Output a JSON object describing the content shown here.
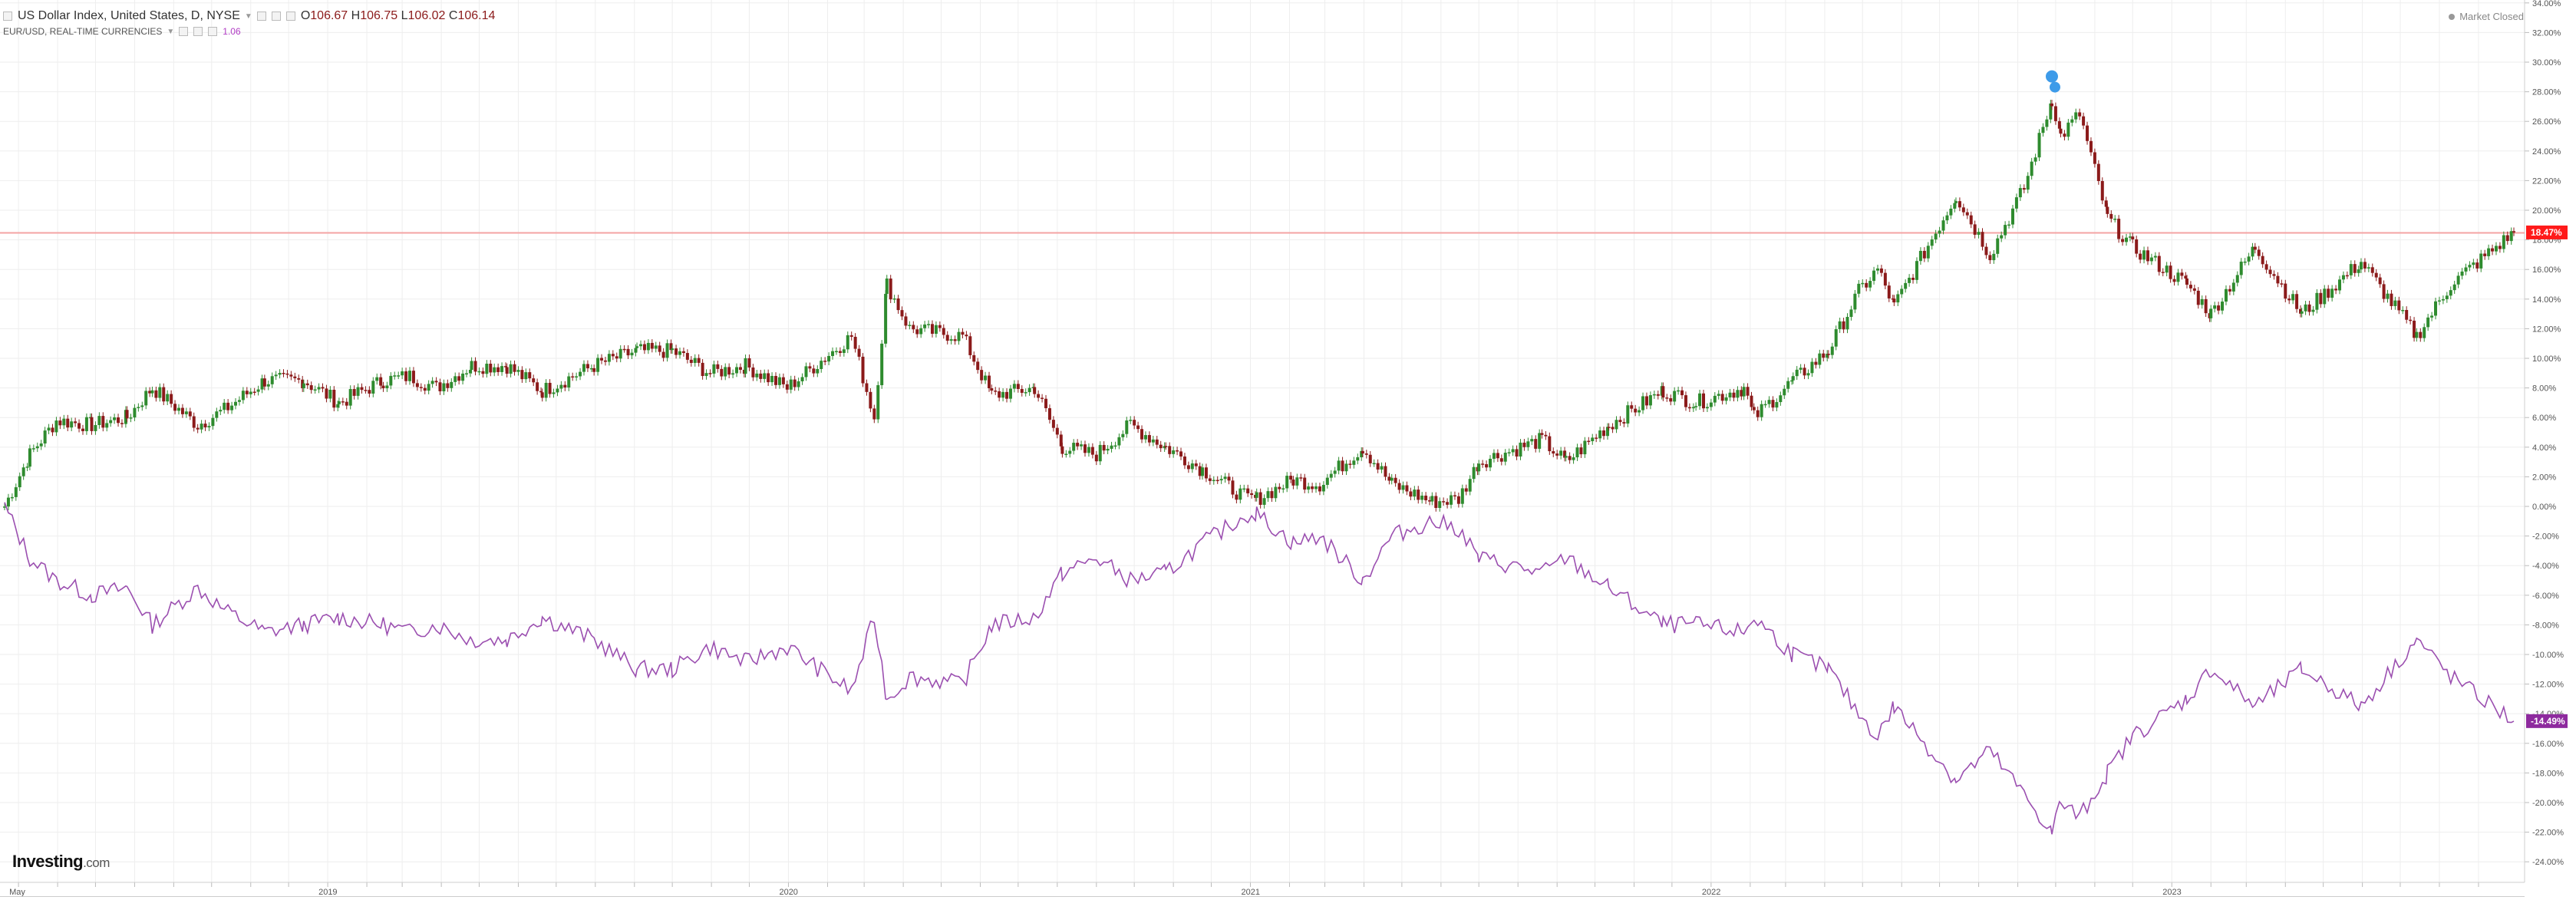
{
  "legend": {
    "main_symbol": "US Dollar Index, United States, D, NYSE",
    "open_label": "O",
    "open": "106.67",
    "high_label": "H",
    "high": "106.75",
    "low_label": "L",
    "low": "106.02",
    "close_label": "C",
    "close": "106.14",
    "compare_symbol": "EUR/USD, REAL-TIME CURRENCIES",
    "compare_value": "1.06",
    "market_status": "Market Closed"
  },
  "branding": {
    "logo_main": "Investing",
    "logo_suffix": ".com"
  },
  "colors": {
    "up": "#2e8b2e",
    "down": "#8b1a1a",
    "compare_line": "#9b4fb0",
    "price_line": "#f4a3a3",
    "badge_main": "#ff1a1a",
    "badge_compare": "#8e2a9e",
    "grid": "#eeeeee",
    "event_marker": "#3d9be9"
  },
  "chart_data": {
    "type": "line",
    "title": "",
    "xlabel": "",
    "ylabel": "",
    "x_range": [
      "2018-04-20",
      "2023-09-29"
    ],
    "ylim": [
      -25,
      34
    ],
    "y_unit": "%",
    "y_ticks": [
      34,
      32,
      30,
      28,
      26,
      24,
      22,
      20,
      18,
      16,
      14,
      12,
      10,
      8,
      6,
      4,
      2,
      0,
      -2,
      -4,
      -6,
      -8,
      -10,
      -12,
      -14,
      -16,
      -18,
      -20,
      -22,
      -24
    ],
    "x_tick_labels": [
      {
        "date": "2018-05-01",
        "label": "May"
      },
      {
        "date": "2019-01-01",
        "label": "2019"
      },
      {
        "date": "2020-01-01",
        "label": "2020"
      },
      {
        "date": "2021-01-01",
        "label": "2021"
      },
      {
        "date": "2022-01-01",
        "label": "2022"
      },
      {
        "date": "2023-01-01",
        "label": "2023"
      }
    ],
    "grid": true,
    "series": [
      {
        "name": "US Dollar Index",
        "style": "candlestick",
        "last_label": "18.47%",
        "points": [
          [
            "2018-04-20",
            0.0
          ],
          [
            "2018-05-10",
            3.5
          ],
          [
            "2018-05-31",
            5.8
          ],
          [
            "2018-06-28",
            5.5
          ],
          [
            "2018-07-26",
            6.0
          ],
          [
            "2018-08-15",
            8.0
          ],
          [
            "2018-09-20",
            5.5
          ],
          [
            "2018-10-11",
            6.5
          ],
          [
            "2018-11-12",
            8.5
          ],
          [
            "2018-12-13",
            8.5
          ],
          [
            "2019-01-10",
            7.0
          ],
          [
            "2019-02-14",
            8.5
          ],
          [
            "2019-03-07",
            8.8
          ],
          [
            "2019-03-28",
            8.0
          ],
          [
            "2019-04-25",
            9.5
          ],
          [
            "2019-05-23",
            9.5
          ],
          [
            "2019-06-20",
            7.8
          ],
          [
            "2019-07-31",
            9.5
          ],
          [
            "2019-09-03",
            10.5
          ],
          [
            "2019-10-01",
            10.5
          ],
          [
            "2019-10-31",
            9.0
          ],
          [
            "2019-11-28",
            9.5
          ],
          [
            "2019-12-31",
            8.0
          ],
          [
            "2020-02-20",
            11.5
          ],
          [
            "2020-03-09",
            6.0
          ],
          [
            "2020-03-19",
            15.0
          ],
          [
            "2020-04-06",
            12.0
          ],
          [
            "2020-05-18",
            11.5
          ],
          [
            "2020-06-10",
            7.5
          ],
          [
            "2020-07-14",
            8.0
          ],
          [
            "2020-08-05",
            4.0
          ],
          [
            "2020-09-01",
            3.5
          ],
          [
            "2020-09-28",
            5.5
          ],
          [
            "2020-10-26",
            4.0
          ],
          [
            "2020-11-24",
            2.5
          ],
          [
            "2020-12-30",
            0.5
          ],
          [
            "2021-01-06",
            0.5
          ],
          [
            "2021-02-04",
            1.8
          ],
          [
            "2021-02-25",
            1.5
          ],
          [
            "2021-03-31",
            4.0
          ],
          [
            "2021-04-23",
            1.5
          ],
          [
            "2021-05-25",
            0.3
          ],
          [
            "2021-06-15",
            0.5
          ],
          [
            "2021-07-01",
            3.0
          ],
          [
            "2021-08-20",
            4.5
          ],
          [
            "2021-09-08",
            3.0
          ],
          [
            "2021-10-12",
            5.5
          ],
          [
            "2021-11-24",
            7.8
          ],
          [
            "2021-12-20",
            7.0
          ],
          [
            "2022-01-27",
            8.0
          ],
          [
            "2022-02-04",
            6.0
          ],
          [
            "2022-03-07",
            8.5
          ],
          [
            "2022-04-04",
            10.5
          ],
          [
            "2022-04-28",
            14.5
          ],
          [
            "2022-05-13",
            16.0
          ],
          [
            "2022-05-26",
            13.5
          ],
          [
            "2022-07-14",
            21.0
          ],
          [
            "2022-08-10",
            17.0
          ],
          [
            "2022-09-06",
            21.5
          ],
          [
            "2022-09-28",
            27.5
          ],
          [
            "2022-10-05",
            25.0
          ],
          [
            "2022-10-20",
            26.5
          ],
          [
            "2022-11-11",
            19.5
          ],
          [
            "2022-12-01",
            17.5
          ],
          [
            "2023-01-13",
            15.0
          ],
          [
            "2023-02-01",
            13.0
          ],
          [
            "2023-03-08",
            17.5
          ],
          [
            "2023-04-14",
            13.0
          ],
          [
            "2023-05-31",
            16.5
          ],
          [
            "2023-07-14",
            11.5
          ],
          [
            "2023-08-10",
            15.0
          ],
          [
            "2023-09-29",
            18.5
          ]
        ]
      },
      {
        "name": "EUR/USD",
        "style": "line",
        "last_label": "-14.49%",
        "points": [
          [
            "2018-04-20",
            0.0
          ],
          [
            "2018-05-10",
            -3.5
          ],
          [
            "2018-05-31",
            -5.0
          ],
          [
            "2018-06-28",
            -6.0
          ],
          [
            "2018-07-26",
            -5.5
          ],
          [
            "2018-08-15",
            -8.0
          ],
          [
            "2018-09-20",
            -5.5
          ],
          [
            "2018-10-11",
            -7.0
          ],
          [
            "2018-11-12",
            -8.5
          ],
          [
            "2018-12-13",
            -8.0
          ],
          [
            "2019-01-10",
            -7.5
          ],
          [
            "2019-02-14",
            -8.0
          ],
          [
            "2019-03-07",
            -8.5
          ],
          [
            "2019-03-28",
            -8.0
          ],
          [
            "2019-04-25",
            -9.0
          ],
          [
            "2019-05-23",
            -9.0
          ],
          [
            "2019-06-20",
            -7.5
          ],
          [
            "2019-07-31",
            -9.0
          ],
          [
            "2019-09-03",
            -11.0
          ],
          [
            "2019-10-01",
            -11.0
          ],
          [
            "2019-10-31",
            -9.5
          ],
          [
            "2019-11-28",
            -10.5
          ],
          [
            "2019-12-31",
            -9.5
          ],
          [
            "2020-02-20",
            -12.5
          ],
          [
            "2020-03-09",
            -7.5
          ],
          [
            "2020-03-19",
            -13.0
          ],
          [
            "2020-04-06",
            -11.5
          ],
          [
            "2020-05-18",
            -12.0
          ],
          [
            "2020-06-10",
            -8.0
          ],
          [
            "2020-07-14",
            -7.5
          ],
          [
            "2020-08-05",
            -4.5
          ],
          [
            "2020-09-01",
            -3.5
          ],
          [
            "2020-09-28",
            -5.0
          ],
          [
            "2020-10-26",
            -4.5
          ],
          [
            "2020-11-24",
            -2.5
          ],
          [
            "2020-12-30",
            -0.5
          ],
          [
            "2021-01-06",
            -0.5
          ],
          [
            "2021-02-04",
            -2.5
          ],
          [
            "2021-02-25",
            -2.0
          ],
          [
            "2021-03-31",
            -5.0
          ],
          [
            "2021-04-23",
            -2.0
          ],
          [
            "2021-05-25",
            -1.0
          ],
          [
            "2021-06-15",
            -1.5
          ],
          [
            "2021-07-01",
            -3.5
          ],
          [
            "2021-08-20",
            -4.5
          ],
          [
            "2021-09-08",
            -3.5
          ],
          [
            "2021-10-12",
            -5.5
          ],
          [
            "2021-11-24",
            -8.0
          ],
          [
            "2021-12-20",
            -8.0
          ],
          [
            "2022-01-27",
            -8.5
          ],
          [
            "2022-02-04",
            -7.5
          ],
          [
            "2022-03-07",
            -10.0
          ],
          [
            "2022-04-04",
            -11.0
          ],
          [
            "2022-04-28",
            -14.0
          ],
          [
            "2022-05-13",
            -15.5
          ],
          [
            "2022-05-26",
            -13.5
          ],
          [
            "2022-07-14",
            -18.5
          ],
          [
            "2022-08-10",
            -16.5
          ],
          [
            "2022-09-06",
            -19.5
          ],
          [
            "2022-09-28",
            -22.0
          ],
          [
            "2022-10-05",
            -20.0
          ],
          [
            "2022-10-20",
            -21.0
          ],
          [
            "2022-11-11",
            -18.0
          ],
          [
            "2022-12-01",
            -15.5
          ],
          [
            "2023-01-13",
            -13.0
          ],
          [
            "2023-02-01",
            -11.0
          ],
          [
            "2023-03-08",
            -13.5
          ],
          [
            "2023-04-14",
            -11.0
          ],
          [
            "2023-05-31",
            -13.5
          ],
          [
            "2023-07-14",
            -9.0
          ],
          [
            "2023-08-10",
            -11.5
          ],
          [
            "2023-09-29",
            -14.5
          ]
        ]
      }
    ],
    "reference_line": 18.47,
    "event_markers": [
      {
        "date": "2022-09-28"
      }
    ]
  }
}
